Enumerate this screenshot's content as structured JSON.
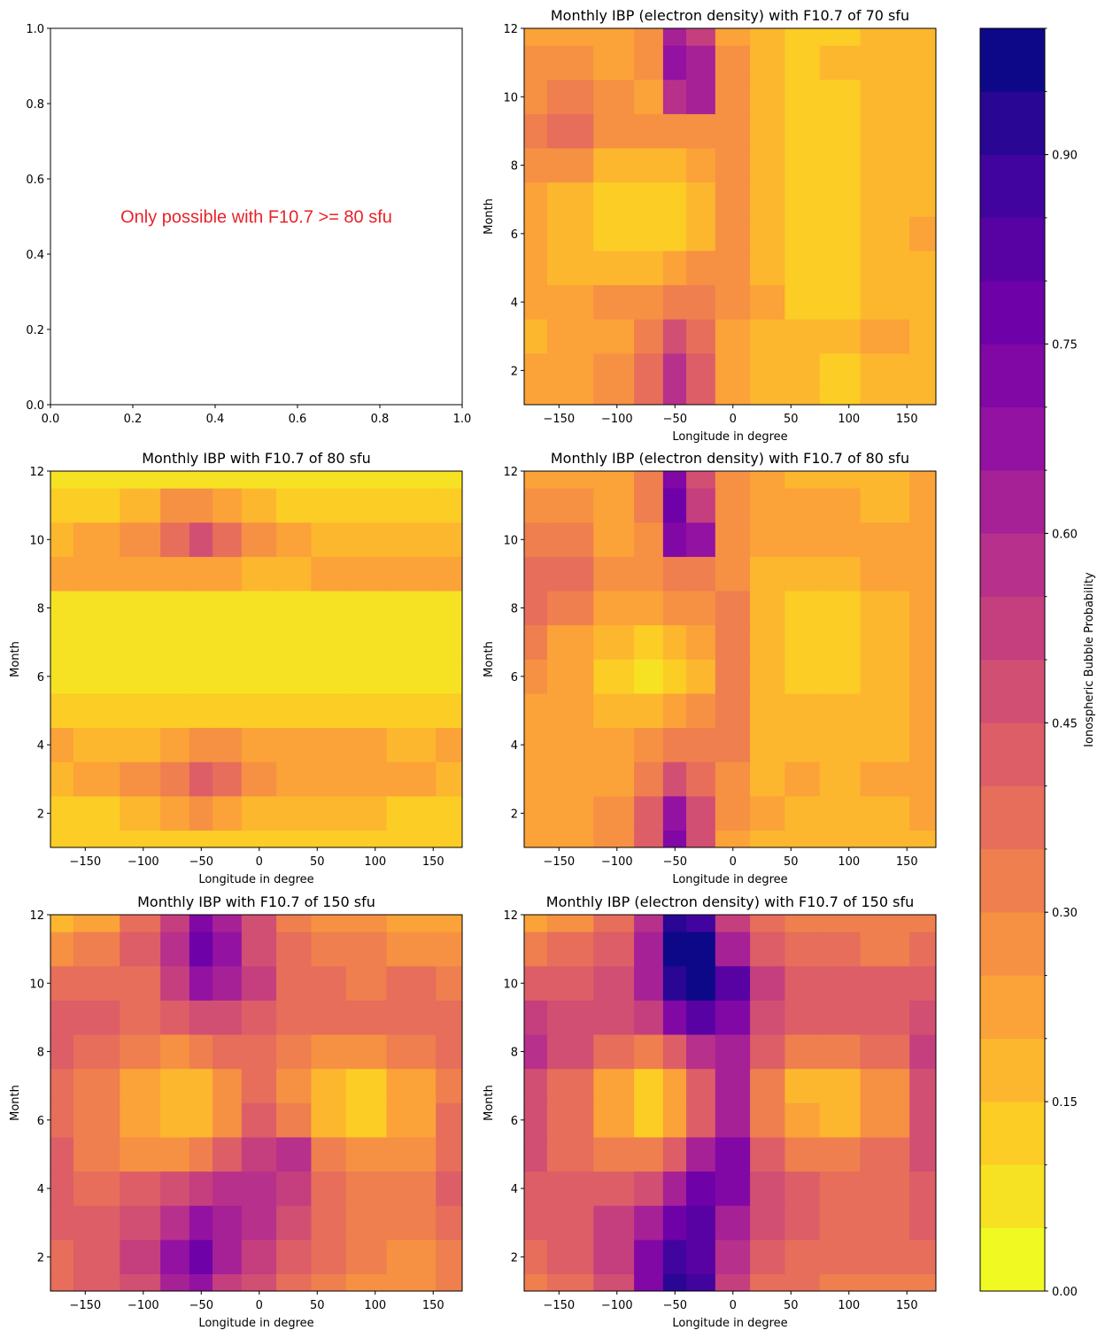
{
  "chart_data": [
    {
      "type": "annotation",
      "annotation": "Only possible with F10.7 >= 80 sfu",
      "annotation_color": "#e8232a",
      "xlim": [
        0,
        1
      ],
      "ylim": [
        0,
        1
      ],
      "xticks": [
        {
          "value": 0,
          "label": "0.0"
        },
        0.2,
        0.4,
        0.6,
        0.8,
        {
          "value": 1,
          "label": "1.0"
        }
      ],
      "yticks": [
        {
          "value": 0,
          "label": "0.0"
        },
        0.2,
        0.4,
        0.6,
        0.8,
        {
          "value": 1,
          "label": "1.0"
        }
      ]
    },
    {
      "type": "contour",
      "title": "Monthly IBP (electron density) with F10.7 of 70 sfu",
      "x_label": "Longitude in degree",
      "y_label": "Month",
      "xlim": [
        -180,
        175
      ],
      "ylim": [
        1,
        12
      ],
      "xticks": [
        {
          "value": -150,
          "label": "−150"
        },
        {
          "value": -100,
          "label": "−100"
        },
        {
          "value": -50,
          "label": "−50"
        },
        0,
        50,
        100,
        150
      ],
      "yticks": [
        2,
        4,
        6,
        8,
        10,
        12
      ],
      "x": [
        -180,
        -140,
        -100,
        -70,
        -50,
        -30,
        0,
        30,
        60,
        90,
        130,
        175
      ],
      "y": [
        1,
        2,
        3,
        4,
        5,
        6,
        7,
        8,
        9,
        10,
        11,
        12
      ],
      "z": [
        [
          0.2,
          0.2,
          0.25,
          0.35,
          0.55,
          0.4,
          0.2,
          0.15,
          0.15,
          0.1,
          0.15,
          0.15
        ],
        [
          0.2,
          0.2,
          0.25,
          0.35,
          0.55,
          0.4,
          0.2,
          0.15,
          0.15,
          0.1,
          0.15,
          0.15
        ],
        [
          0.15,
          0.2,
          0.2,
          0.3,
          0.45,
          0.35,
          0.2,
          0.15,
          0.15,
          0.15,
          0.2,
          0.15
        ],
        [
          0.2,
          0.2,
          0.25,
          0.25,
          0.3,
          0.3,
          0.25,
          0.2,
          0.1,
          0.1,
          0.15,
          0.15
        ],
        [
          0.2,
          0.15,
          0.15,
          0.15,
          0.2,
          0.25,
          0.25,
          0.15,
          0.1,
          0.1,
          0.15,
          0.15
        ],
        [
          0.2,
          0.15,
          0.1,
          0.1,
          0.1,
          0.15,
          0.25,
          0.15,
          0.1,
          0.1,
          0.15,
          0.2
        ],
        [
          0.2,
          0.15,
          0.1,
          0.1,
          0.1,
          0.15,
          0.25,
          0.15,
          0.1,
          0.1,
          0.15,
          0.15
        ],
        [
          0.25,
          0.25,
          0.15,
          0.15,
          0.15,
          0.2,
          0.25,
          0.15,
          0.1,
          0.1,
          0.15,
          0.15
        ],
        [
          0.3,
          0.35,
          0.25,
          0.25,
          0.25,
          0.25,
          0.25,
          0.15,
          0.1,
          0.1,
          0.15,
          0.15
        ],
        [
          0.25,
          0.3,
          0.25,
          0.2,
          0.55,
          0.6,
          0.25,
          0.15,
          0.1,
          0.1,
          0.15,
          0.15
        ],
        [
          0.25,
          0.25,
          0.2,
          0.25,
          0.65,
          0.6,
          0.25,
          0.15,
          0.1,
          0.15,
          0.15,
          0.15
        ],
        [
          0.2,
          0.2,
          0.2,
          0.25,
          0.6,
          0.5,
          0.2,
          0.15,
          0.1,
          0.1,
          0.15,
          0.15
        ]
      ]
    },
    {
      "type": "contour",
      "title": "Monthly IBP with F10.7 of 80 sfu",
      "x_label": "Longitude in degree",
      "y_label": "Month",
      "xlim": [
        -180,
        175
      ],
      "ylim": [
        1,
        12
      ],
      "xticks": [
        {
          "value": -150,
          "label": "−150"
        },
        {
          "value": -100,
          "label": "−100"
        },
        {
          "value": -50,
          "label": "−50"
        },
        0,
        50,
        100,
        150
      ],
      "yticks": [
        2,
        4,
        6,
        8,
        10,
        12
      ],
      "x": [
        -180,
        -140,
        -100,
        -70,
        -50,
        -30,
        0,
        30,
        60,
        90,
        130,
        175
      ],
      "y": [
        1,
        2,
        3,
        4,
        5,
        6,
        7,
        8,
        9,
        10,
        11,
        12
      ],
      "z": [
        [
          0.1,
          0.1,
          0.1,
          0.1,
          0.1,
          0.1,
          0.1,
          0.1,
          0.1,
          0.1,
          0.1,
          0.1
        ],
        [
          0.1,
          0.1,
          0.15,
          0.2,
          0.25,
          0.2,
          0.15,
          0.15,
          0.15,
          0.15,
          0.1,
          0.1
        ],
        [
          0.15,
          0.2,
          0.25,
          0.3,
          0.4,
          0.35,
          0.25,
          0.2,
          0.2,
          0.2,
          0.2,
          0.15
        ],
        [
          0.2,
          0.15,
          0.15,
          0.2,
          0.25,
          0.25,
          0.2,
          0.2,
          0.2,
          0.2,
          0.15,
          0.2
        ],
        [
          0.1,
          0.1,
          0.1,
          0.1,
          0.1,
          0.1,
          0.1,
          0.1,
          0.1,
          0.1,
          0.1,
          0.1
        ],
        [
          0.05,
          0.05,
          0.05,
          0.05,
          0.05,
          0.05,
          0.05,
          0.05,
          0.05,
          0.05,
          0.05,
          0.05
        ],
        [
          0.05,
          0.05,
          0.05,
          0.05,
          0.05,
          0.05,
          0.05,
          0.05,
          0.05,
          0.05,
          0.05,
          0.05
        ],
        [
          0.05,
          0.05,
          0.05,
          0.05,
          0.05,
          0.05,
          0.05,
          0.05,
          0.05,
          0.05,
          0.05,
          0.05
        ],
        [
          0.2,
          0.2,
          0.2,
          0.2,
          0.2,
          0.2,
          0.15,
          0.15,
          0.2,
          0.2,
          0.2,
          0.2
        ],
        [
          0.15,
          0.2,
          0.25,
          0.35,
          0.45,
          0.35,
          0.25,
          0.2,
          0.15,
          0.15,
          0.15,
          0.15
        ],
        [
          0.1,
          0.1,
          0.15,
          0.25,
          0.25,
          0.2,
          0.15,
          0.1,
          0.1,
          0.1,
          0.1,
          0.1
        ],
        [
          0.05,
          0.05,
          0.05,
          0.05,
          0.05,
          0.05,
          0.05,
          0.05,
          0.05,
          0.05,
          0.05,
          0.05
        ]
      ]
    },
    {
      "type": "contour",
      "title": "Monthly IBP (electron density) with F10.7 of 80 sfu",
      "x_label": "Longitude in degree",
      "y_label": "Month",
      "xlim": [
        -180,
        175
      ],
      "ylim": [
        1,
        12
      ],
      "xticks": [
        {
          "value": -150,
          "label": "−150"
        },
        {
          "value": -100,
          "label": "−100"
        },
        {
          "value": -50,
          "label": "−50"
        },
        0,
        50,
        100,
        150
      ],
      "yticks": [
        2,
        4,
        6,
        8,
        10,
        12
      ],
      "x": [
        -180,
        -140,
        -100,
        -70,
        -50,
        -30,
        0,
        30,
        60,
        90,
        130,
        175
      ],
      "y": [
        1,
        2,
        3,
        4,
        5,
        6,
        7,
        8,
        9,
        10,
        11,
        12
      ],
      "z": [
        [
          0.2,
          0.2,
          0.25,
          0.4,
          0.7,
          0.45,
          0.2,
          0.15,
          0.15,
          0.15,
          0.15,
          0.15
        ],
        [
          0.2,
          0.2,
          0.25,
          0.4,
          0.65,
          0.45,
          0.25,
          0.2,
          0.15,
          0.15,
          0.15,
          0.2
        ],
        [
          0.2,
          0.2,
          0.2,
          0.3,
          0.45,
          0.35,
          0.25,
          0.15,
          0.2,
          0.15,
          0.2,
          0.2
        ],
        [
          0.2,
          0.2,
          0.2,
          0.25,
          0.3,
          0.3,
          0.3,
          0.15,
          0.15,
          0.15,
          0.15,
          0.2
        ],
        [
          0.2,
          0.2,
          0.15,
          0.15,
          0.2,
          0.25,
          0.3,
          0.15,
          0.15,
          0.15,
          0.15,
          0.2
        ],
        [
          0.25,
          0.2,
          0.1,
          0.05,
          0.1,
          0.15,
          0.3,
          0.15,
          0.1,
          0.1,
          0.15,
          0.2
        ],
        [
          0.3,
          0.2,
          0.15,
          0.1,
          0.15,
          0.2,
          0.3,
          0.15,
          0.1,
          0.1,
          0.15,
          0.2
        ],
        [
          0.35,
          0.3,
          0.2,
          0.2,
          0.25,
          0.25,
          0.3,
          0.15,
          0.1,
          0.1,
          0.15,
          0.2
        ],
        [
          0.35,
          0.35,
          0.25,
          0.25,
          0.3,
          0.3,
          0.25,
          0.15,
          0.15,
          0.15,
          0.2,
          0.2
        ],
        [
          0.3,
          0.3,
          0.2,
          0.25,
          0.7,
          0.65,
          0.25,
          0.2,
          0.2,
          0.2,
          0.2,
          0.2
        ],
        [
          0.25,
          0.25,
          0.2,
          0.3,
          0.75,
          0.5,
          0.25,
          0.2,
          0.2,
          0.2,
          0.15,
          0.2
        ],
        [
          0.2,
          0.2,
          0.2,
          0.3,
          0.7,
          0.45,
          0.25,
          0.2,
          0.15,
          0.15,
          0.15,
          0.2
        ]
      ]
    },
    {
      "type": "contour",
      "title": "Monthly IBP with F10.7 of 150 sfu",
      "x_label": "Longitude in degree",
      "y_label": "Month",
      "xlim": [
        -180,
        175
      ],
      "ylim": [
        1,
        12
      ],
      "xticks": [
        {
          "value": -150,
          "label": "−150"
        },
        {
          "value": -100,
          "label": "−100"
        },
        {
          "value": -50,
          "label": "−50"
        },
        0,
        50,
        100,
        150
      ],
      "yticks": [
        2,
        4,
        6,
        8,
        10,
        12
      ],
      "x": [
        -180,
        -140,
        -100,
        -70,
        -50,
        -30,
        0,
        30,
        60,
        90,
        130,
        175
      ],
      "y": [
        1,
        2,
        3,
        4,
        5,
        6,
        7,
        8,
        9,
        10,
        11,
        12
      ],
      "z": [
        [
          0.35,
          0.4,
          0.45,
          0.6,
          0.65,
          0.5,
          0.45,
          0.35,
          0.3,
          0.25,
          0.25,
          0.3
        ],
        [
          0.35,
          0.4,
          0.5,
          0.65,
          0.75,
          0.6,
          0.5,
          0.4,
          0.35,
          0.3,
          0.25,
          0.3
        ],
        [
          0.4,
          0.4,
          0.45,
          0.55,
          0.65,
          0.6,
          0.55,
          0.45,
          0.35,
          0.3,
          0.3,
          0.35
        ],
        [
          0.4,
          0.35,
          0.4,
          0.45,
          0.5,
          0.55,
          0.55,
          0.5,
          0.35,
          0.3,
          0.3,
          0.4
        ],
        [
          0.4,
          0.3,
          0.25,
          0.25,
          0.3,
          0.4,
          0.5,
          0.55,
          0.3,
          0.25,
          0.25,
          0.35
        ],
        [
          0.35,
          0.3,
          0.2,
          0.15,
          0.15,
          0.25,
          0.4,
          0.3,
          0.15,
          0.1,
          0.2,
          0.35
        ],
        [
          0.35,
          0.3,
          0.2,
          0.15,
          0.15,
          0.25,
          0.35,
          0.25,
          0.15,
          0.1,
          0.2,
          0.3
        ],
        [
          0.4,
          0.35,
          0.3,
          0.25,
          0.3,
          0.35,
          0.35,
          0.3,
          0.25,
          0.25,
          0.3,
          0.35
        ],
        [
          0.4,
          0.4,
          0.35,
          0.4,
          0.45,
          0.45,
          0.4,
          0.35,
          0.35,
          0.35,
          0.35,
          0.35
        ],
        [
          0.35,
          0.35,
          0.35,
          0.5,
          0.65,
          0.6,
          0.5,
          0.35,
          0.35,
          0.3,
          0.35,
          0.3
        ],
        [
          0.25,
          0.3,
          0.4,
          0.55,
          0.75,
          0.65,
          0.45,
          0.35,
          0.3,
          0.3,
          0.25,
          0.25
        ],
        [
          0.15,
          0.2,
          0.35,
          0.5,
          0.7,
          0.6,
          0.45,
          0.3,
          0.25,
          0.25,
          0.2,
          0.2
        ]
      ]
    },
    {
      "type": "contour",
      "title": "Monthly IBP (electron density) with F10.7 of 150 sfu",
      "x_label": "Longitude in degree",
      "y_label": "Month",
      "xlim": [
        -180,
        175
      ],
      "ylim": [
        1,
        12
      ],
      "xticks": [
        {
          "value": -150,
          "label": "−150"
        },
        {
          "value": -100,
          "label": "−100"
        },
        {
          "value": -50,
          "label": "−50"
        },
        0,
        50,
        100,
        150
      ],
      "yticks": [
        2,
        4,
        6,
        8,
        10,
        12
      ],
      "x": [
        -180,
        -140,
        -100,
        -70,
        -50,
        -30,
        0,
        30,
        60,
        90,
        130,
        175
      ],
      "y": [
        1,
        2,
        3,
        4,
        5,
        6,
        7,
        8,
        9,
        10,
        11,
        12
      ],
      "z": [
        [
          0.3,
          0.35,
          0.45,
          0.7,
          0.9,
          0.85,
          0.5,
          0.35,
          0.35,
          0.3,
          0.3,
          0.3
        ],
        [
          0.35,
          0.4,
          0.5,
          0.7,
          0.85,
          0.8,
          0.55,
          0.4,
          0.35,
          0.35,
          0.35,
          0.35
        ],
        [
          0.4,
          0.4,
          0.5,
          0.6,
          0.75,
          0.8,
          0.6,
          0.45,
          0.4,
          0.35,
          0.35,
          0.4
        ],
        [
          0.4,
          0.4,
          0.4,
          0.45,
          0.6,
          0.75,
          0.7,
          0.45,
          0.4,
          0.35,
          0.35,
          0.4
        ],
        [
          0.45,
          0.35,
          0.3,
          0.3,
          0.4,
          0.6,
          0.7,
          0.4,
          0.3,
          0.3,
          0.35,
          0.45
        ],
        [
          0.45,
          0.35,
          0.2,
          0.1,
          0.2,
          0.4,
          0.6,
          0.3,
          0.2,
          0.15,
          0.25,
          0.45
        ],
        [
          0.45,
          0.35,
          0.2,
          0.1,
          0.2,
          0.4,
          0.6,
          0.3,
          0.15,
          0.15,
          0.25,
          0.45
        ],
        [
          0.55,
          0.45,
          0.35,
          0.3,
          0.4,
          0.55,
          0.6,
          0.4,
          0.3,
          0.3,
          0.35,
          0.5
        ],
        [
          0.5,
          0.45,
          0.45,
          0.5,
          0.7,
          0.8,
          0.7,
          0.45,
          0.4,
          0.4,
          0.4,
          0.45
        ],
        [
          0.4,
          0.4,
          0.45,
          0.6,
          0.9,
          0.95,
          0.8,
          0.5,
          0.4,
          0.4,
          0.4,
          0.4
        ],
        [
          0.3,
          0.35,
          0.4,
          0.6,
          0.95,
          0.95,
          0.6,
          0.4,
          0.35,
          0.35,
          0.3,
          0.35
        ],
        [
          0.2,
          0.25,
          0.35,
          0.55,
          0.9,
          0.85,
          0.5,
          0.35,
          0.3,
          0.3,
          0.3,
          0.3
        ]
      ]
    },
    {
      "type": "colorbar",
      "label": "Ionospheric Bubble Probability",
      "ylim": [
        0,
        1
      ],
      "levels": [
        0,
        0.05,
        0.1,
        0.15,
        0.2,
        0.25,
        0.3,
        0.35,
        0.4,
        0.45,
        0.5,
        0.55,
        0.6,
        0.65,
        0.7,
        0.75,
        0.8,
        0.85,
        0.9,
        0.95,
        1
      ],
      "colors": [
        "#f0f921",
        "#f6e223",
        "#fccd25",
        "#fcb72f",
        "#fba238",
        "#f69143",
        "#ef7f4e",
        "#e66e5b",
        "#dd5e67",
        "#d14f72",
        "#c53f7e",
        "#b7308b",
        "#a62196",
        "#9412a1",
        "#8108a5",
        "#6e01a8",
        "#5902a3",
        "#42049e",
        "#290693",
        "#0d0887"
      ],
      "yticks": [
        {
          "value": 0,
          "label": "0.00"
        },
        0.15,
        {
          "value": 0.3,
          "label": "0.30"
        },
        0.45,
        {
          "value": 0.6,
          "label": "0.60"
        },
        0.75,
        {
          "value": 0.9,
          "label": "0.90"
        }
      ]
    }
  ]
}
